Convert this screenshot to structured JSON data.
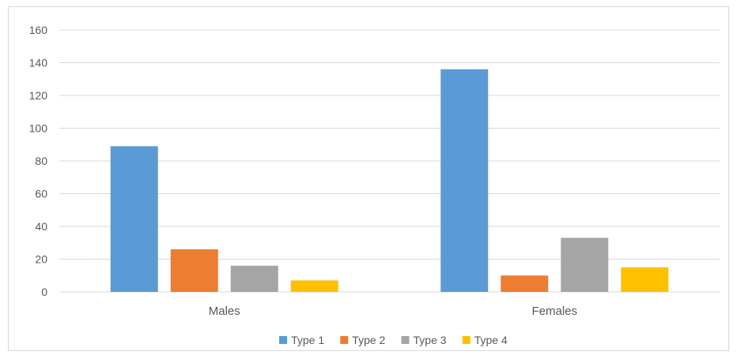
{
  "chart_data": {
    "type": "bar",
    "categories": [
      "Males",
      "Females"
    ],
    "series": [
      {
        "name": "Type 1",
        "color": "#5b9bd5",
        "values": [
          89,
          136
        ]
      },
      {
        "name": "Type 2",
        "color": "#ed7d31",
        "values": [
          26,
          10
        ]
      },
      {
        "name": "Type 3",
        "color": "#a5a5a5",
        "values": [
          16,
          33
        ]
      },
      {
        "name": "Type 4",
        "color": "#ffc000",
        "values": [
          7,
          15
        ]
      }
    ],
    "ylim": [
      0,
      160
    ],
    "yticks": [
      "0",
      "20",
      "40",
      "60",
      "80",
      "100",
      "120",
      "140",
      "160"
    ],
    "grid": true,
    "legend_position": "bottom",
    "title": "",
    "xlabel": "",
    "ylabel": ""
  }
}
